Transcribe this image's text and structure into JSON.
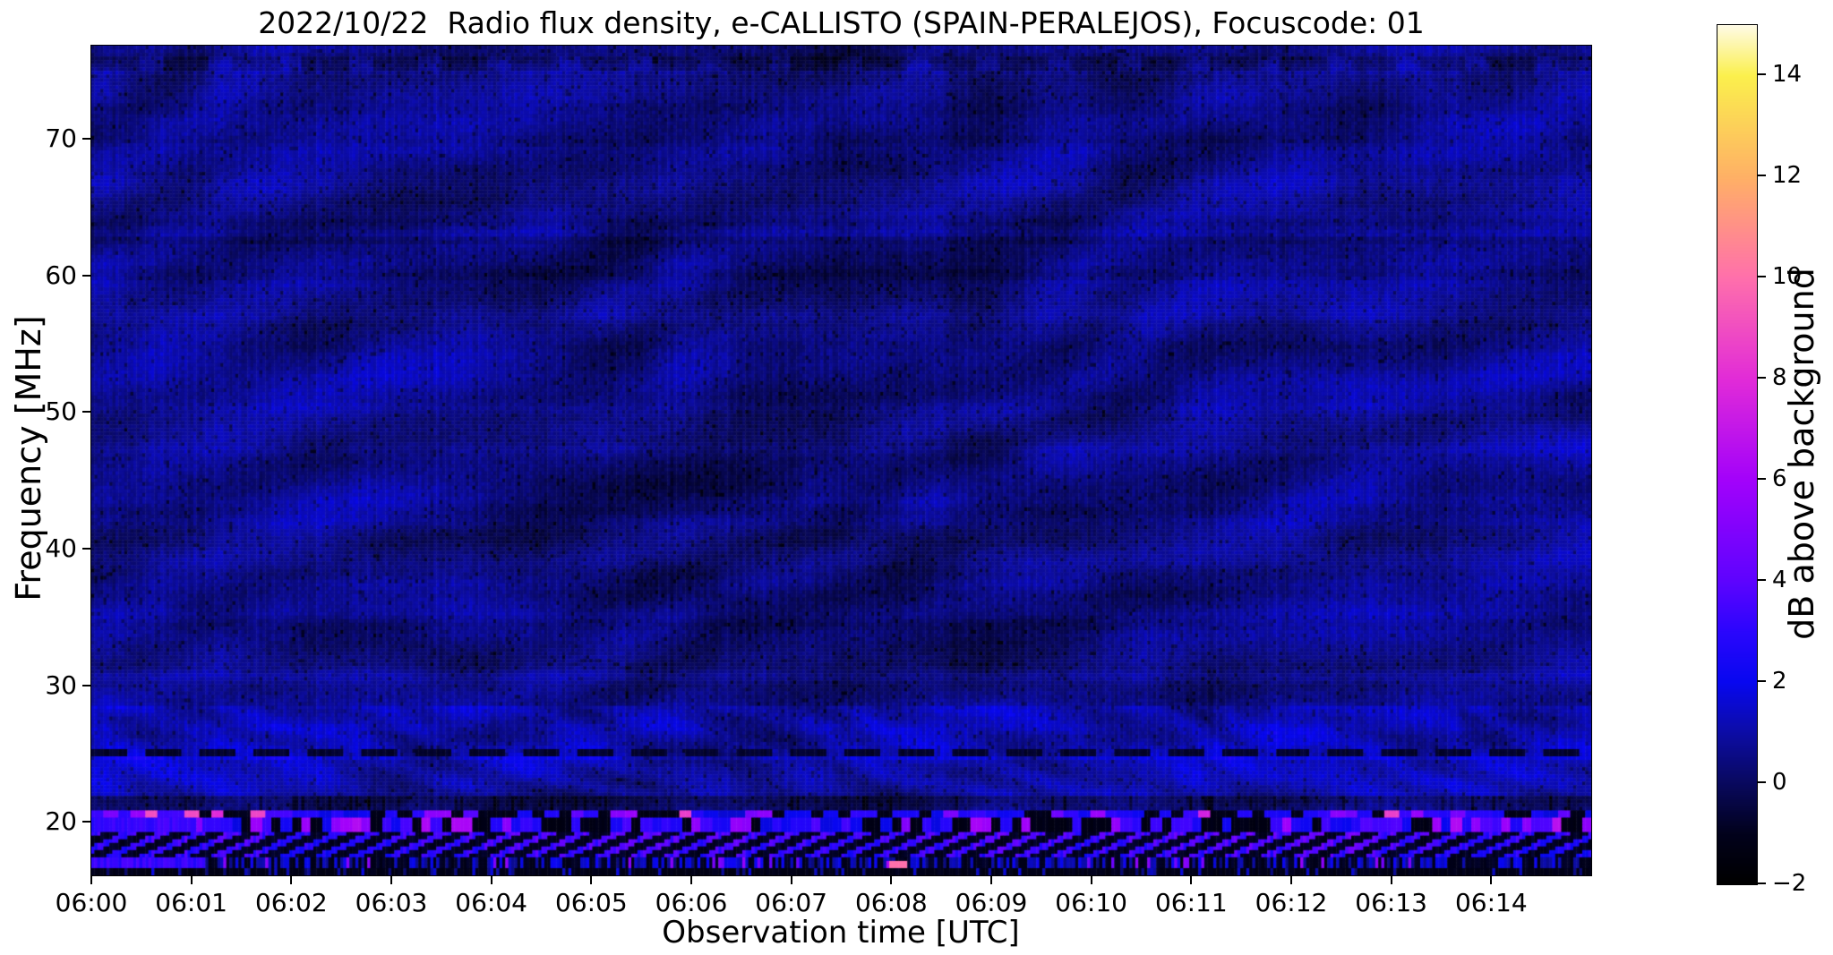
{
  "chart_data": {
    "type": "heatmap",
    "title": "2022/10/22  Radio flux density, e-CALLISTO (SPAIN-PERALEJOS), Focuscode: 01",
    "xlabel": "Observation time [UTC]",
    "ylabel": "Frequency [MHz]",
    "x_ticks": [
      "06:00",
      "06:01",
      "06:02",
      "06:03",
      "06:04",
      "06:05",
      "06:06",
      "06:07",
      "06:08",
      "06:09",
      "06:10",
      "06:11",
      "06:12",
      "06:13",
      "06:14"
    ],
    "x_range_minutes": [
      0,
      15
    ],
    "y_ticks": [
      70,
      60,
      50,
      40,
      30,
      20
    ],
    "y_tick_labels": [
      "70",
      "60",
      "50",
      "40",
      "30",
      "20"
    ],
    "y_range_mhz": [
      16.1,
      76.8
    ],
    "grid": false,
    "legend": "none",
    "colorbar": {
      "label": "dB above background",
      "side": "right",
      "range_db": [
        -2,
        15
      ],
      "ticks": [
        {
          "v": 14,
          "label": "14"
        },
        {
          "v": 12,
          "label": "12"
        },
        {
          "v": 10,
          "label": "10"
        },
        {
          "v": 8,
          "label": "8"
        },
        {
          "v": 6,
          "label": "6"
        },
        {
          "v": 4,
          "label": "4"
        },
        {
          "v": 2,
          "label": "2"
        },
        {
          "v": 0,
          "label": "0"
        },
        {
          "v": -2,
          "label": "−2"
        }
      ],
      "colormap_stops": [
        {
          "v": -2,
          "c": "#000000"
        },
        {
          "v": -1,
          "c": "#02021c"
        },
        {
          "v": 0,
          "c": "#09095e"
        },
        {
          "v": 1,
          "c": "#0d0da6"
        },
        {
          "v": 2,
          "c": "#0808f0"
        },
        {
          "v": 3,
          "c": "#2b06fd"
        },
        {
          "v": 4,
          "c": "#5e04ff"
        },
        {
          "v": 6,
          "c": "#a302fb"
        },
        {
          "v": 8,
          "c": "#e22cd8"
        },
        {
          "v": 10,
          "c": "#ff70ac"
        },
        {
          "v": 12,
          "c": "#ffb166"
        },
        {
          "v": 14,
          "c": "#fbf04d"
        },
        {
          "v": 15,
          "c": "#fffbe6"
        }
      ]
    },
    "background_level_db": 0.7,
    "features": [
      {
        "id": "quiet-background",
        "f_mhz": [
          22.0,
          76.8
        ],
        "t_min": [
          0,
          15
        ],
        "level_db": 0.7,
        "desc": "Mottled dark-blue background with wavy interference ripples"
      },
      {
        "id": "bright-band-22-28",
        "f_mhz": [
          21.8,
          28.5
        ],
        "t_min": [
          0,
          15
        ],
        "level_db": 1.3,
        "desc": "Brighter blue band with herringbone ripple pattern"
      },
      {
        "id": "dark-line-25",
        "f_mhz": [
          24.9,
          25.3
        ],
        "t_min": [
          0,
          15
        ],
        "level_db": -0.9,
        "desc": "Dashed dark horizontal line across whole plot"
      },
      {
        "id": "bright-line-24",
        "f_mhz": [
          24.5,
          24.9
        ],
        "t_min": [
          0,
          15
        ],
        "level_db": 1.2,
        "desc": "Slightly brighter row under the dark dashed line"
      },
      {
        "id": "dashed-dark-75",
        "f_mhz": [
          74.9,
          76.1
        ],
        "t_min": [
          0,
          15
        ],
        "level_db": -0.2,
        "desc": "Dashed darker band near 75 MHz"
      },
      {
        "id": "faint-dark-62",
        "f_mhz": [
          62.3,
          62.8
        ],
        "t_min": [
          0,
          15
        ],
        "level_db": 0.4,
        "desc": "Faint darker line near 62.5 MHz"
      },
      {
        "id": "dark-gap-21",
        "f_mhz": [
          20.95,
          21.8
        ],
        "t_min": [
          0,
          15
        ],
        "level_db": 0.2,
        "desc": "Darker speckled row"
      },
      {
        "id": "rfi-21",
        "f_mhz": [
          20.35,
          20.95
        ],
        "t_min": [
          0,
          15
        ],
        "level_db": 9,
        "desc": "Broadcast RFI row: black gaps with bright blue and magenta bursts"
      },
      {
        "id": "rfi-20",
        "f_mhz": [
          19.35,
          20.35
        ],
        "t_min": [
          0,
          15
        ],
        "level_db": 6,
        "desc": "RFI row of bright blue segments separated by black gaps"
      },
      {
        "id": "stripes-18",
        "f_mhz": [
          17.5,
          19.35
        ],
        "t_min": [
          0,
          15
        ],
        "level_db": 4,
        "desc": "Diagonal ionospheric stripes descending with time"
      },
      {
        "id": "speckle-17",
        "f_mhz": [
          16.55,
          17.5
        ],
        "t_min": [
          0,
          15
        ],
        "level_db": 5,
        "desc": "Speckled shortwave-band row with violet dots"
      },
      {
        "id": "bright-start-20",
        "f_mhz": [
          19.4,
          20.35
        ],
        "t_min": [
          0,
          1.05
        ],
        "level_db": 3.2,
        "desc": "Solid bright bar at 06:00-06:01"
      },
      {
        "id": "bright-start-17",
        "f_mhz": [
          16.9,
          17.7
        ],
        "t_min": [
          0,
          1.15
        ],
        "level_db": 3.0,
        "desc": "Solid bright bar at 06:00-06:01"
      },
      {
        "id": "salmon-burst",
        "f_mhz": [
          16.55,
          17.1
        ],
        "t_min": [
          7.98,
          8.17
        ],
        "level_db": 10,
        "desc": "Strong pink-orange RFI burst just after 06:08"
      },
      {
        "id": "bottom-dark",
        "f_mhz": [
          16.07,
          16.55
        ],
        "t_min": [
          0,
          15
        ],
        "level_db": -1.4,
        "desc": "Near-black bottom edge with sparse blue speckles"
      }
    ]
  }
}
